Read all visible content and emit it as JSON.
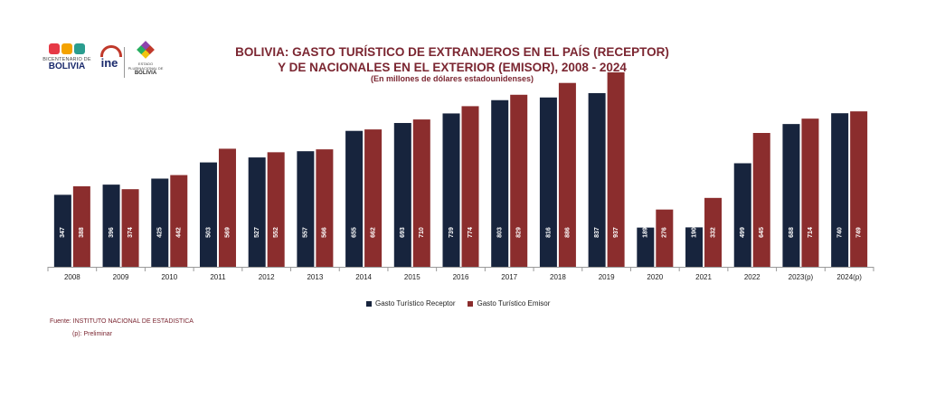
{
  "logos": {
    "bicentenario_small": "BICENTENARIO DE",
    "bicentenario_big": "BOLIVIA",
    "ine_text": "ine",
    "gob_small": "ESTADO PLURINACIONAL DE",
    "gob_big": "BOLIVIA"
  },
  "colors": {
    "receptor": "#17243d",
    "emisor": "#8b2d2d",
    "title": "#7b2631"
  },
  "chart_data": {
    "type": "bar",
    "title": "BOLIVIA: GASTO TURÍSTICO DE EXTRANJEROS EN EL PAÍS (RECEPTOR) Y DE NACIONALES EN EL EXTERIOR (EMISOR), 2008 - 2024",
    "subtitle": "(En millones de dólares estadounidenses)",
    "xlabel": "",
    "ylabel": "",
    "ylim": [
      0,
      1000
    ],
    "grid": false,
    "legend_position": "bottom",
    "categories": [
      "2008",
      "2009",
      "2010",
      "2011",
      "2012",
      "2013",
      "2014",
      "2015",
      "2016",
      "2017",
      "2018",
      "2019",
      "2020",
      "2021",
      "2022",
      "2023(p)",
      "2024(p)"
    ],
    "series": [
      {
        "name": "Gasto Turístico Receptor",
        "values": [
          347,
          396,
          425,
          503,
          527,
          557,
          655,
          693,
          739,
          803,
          816,
          837,
          189,
          190,
          499,
          688,
          740
        ]
      },
      {
        "name": "Gasto Turístico Emisor",
        "values": [
          388,
          374,
          442,
          569,
          552,
          566,
          662,
          710,
          774,
          829,
          886,
          937,
          276,
          332,
          645,
          714,
          749
        ]
      }
    ]
  },
  "footer": {
    "source": "Fuente: INSTITUTO NACIONAL DE ESTADISTICA",
    "note": "(p): Preliminar"
  }
}
